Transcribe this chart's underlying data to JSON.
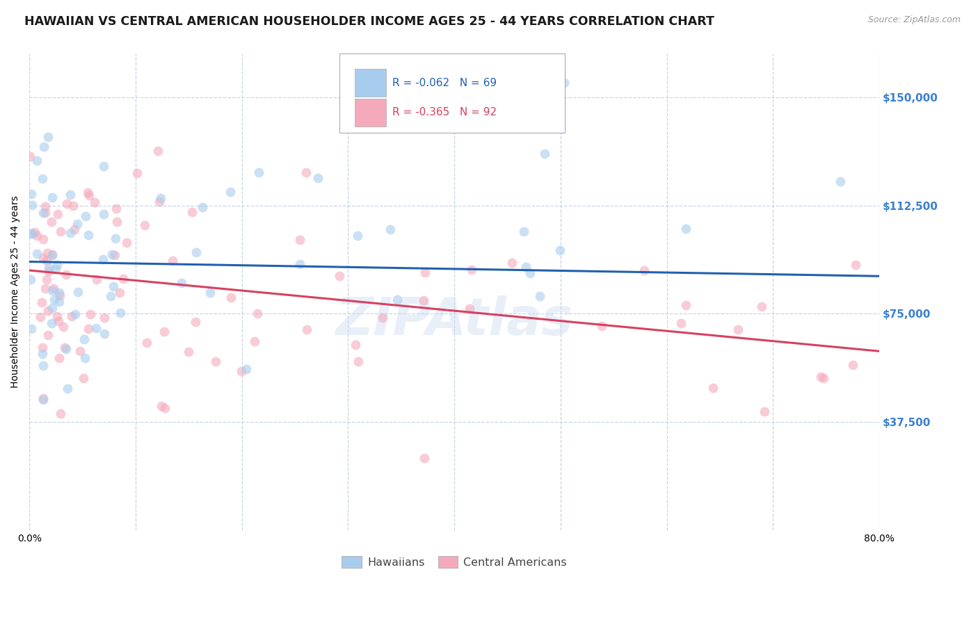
{
  "title": "HAWAIIAN VS CENTRAL AMERICAN HOUSEHOLDER INCOME AGES 25 - 44 YEARS CORRELATION CHART",
  "source": "Source: ZipAtlas.com",
  "ylabel": "Householder Income Ages 25 - 44 years",
  "ytick_labels": [
    "$37,500",
    "$75,000",
    "$112,500",
    "$150,000"
  ],
  "ytick_values": [
    37500,
    75000,
    112500,
    150000
  ],
  "ylim": [
    0,
    165000
  ],
  "xlim": [
    0.0,
    0.8
  ],
  "legend_blue_label": "Hawaiians",
  "legend_pink_label": "Central Americans",
  "legend_R_blue": "-0.062",
  "legend_N_blue": "69",
  "legend_R_pink": "-0.365",
  "legend_N_pink": "92",
  "blue_color": "#A8CCEE",
  "pink_color": "#F4AABB",
  "blue_line_color": "#2060B0",
  "pink_line_color": "#D84060",
  "right_tick_color": "#3A80D0",
  "background_color": "#FFFFFF",
  "grid_color": "#C8D4E4",
  "marker_size": 100,
  "marker_alpha": 0.6,
  "line_width": 2.2,
  "title_fontsize": 12.5,
  "axis_label_fontsize": 10,
  "tick_fontsize": 10,
  "blue_line_y0": 93000,
  "blue_line_y1": 88000,
  "pink_line_y0": 90000,
  "pink_line_y1": 62000,
  "blue_N": 69,
  "pink_N": 92,
  "seed_blue": 7,
  "seed_pink": 13
}
